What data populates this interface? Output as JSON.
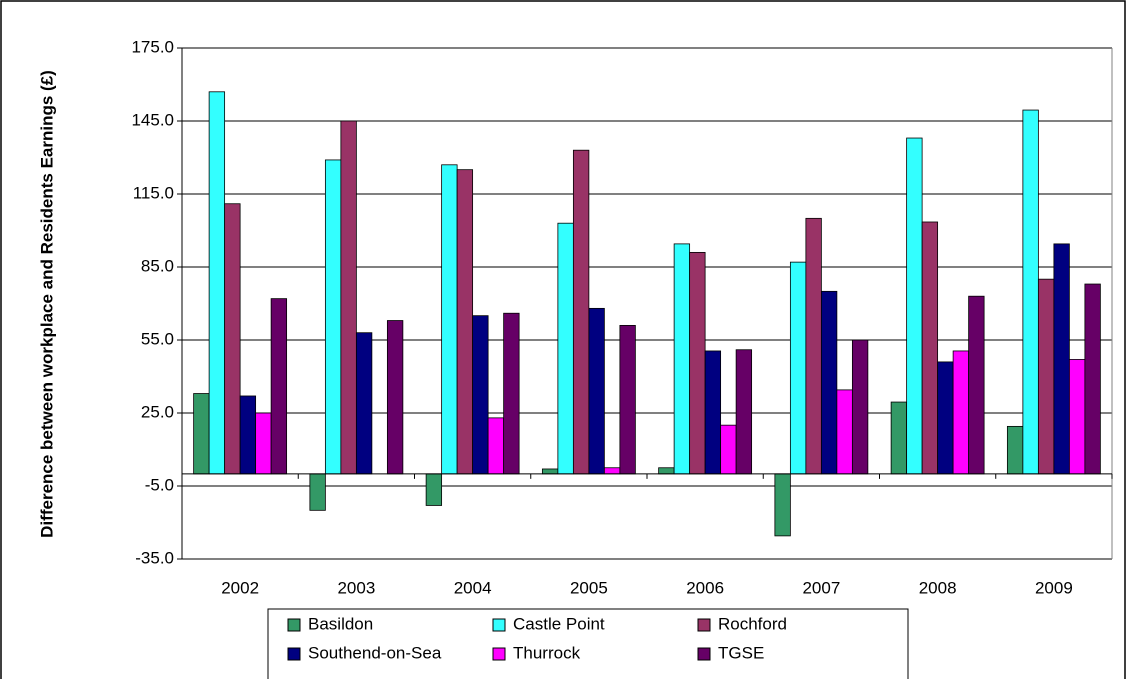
{
  "chart_data": {
    "type": "bar",
    "y_label": "Difference between workplace and Residents Earnings (£)",
    "categories": [
      "2002",
      "2003",
      "2004",
      "2005",
      "2006",
      "2007",
      "2008",
      "2009"
    ],
    "series": [
      {
        "name": "Basildon",
        "color": "#339966",
        "values": [
          33,
          -15,
          -13,
          2,
          2.5,
          -25.5,
          29.5,
          19.5
        ]
      },
      {
        "name": "Castle Point",
        "color": "#33ffff",
        "values": [
          157,
          129,
          127,
          103,
          94.5,
          87,
          138,
          149.5
        ]
      },
      {
        "name": "Rochford",
        "color": "#993366",
        "values": [
          111,
          145,
          125,
          133,
          91,
          105,
          103.5,
          80
        ]
      },
      {
        "name": "Southend-on-Sea",
        "color": "#000080",
        "values": [
          32,
          58,
          65,
          68,
          50.5,
          75,
          46,
          94.5
        ]
      },
      {
        "name": "Thurrock",
        "color": "#ff00ff",
        "values": [
          25,
          null,
          23,
          2.5,
          20,
          34.5,
          50.5,
          47
        ]
      },
      {
        "name": "TGSE",
        "color": "#660066",
        "values": [
          72,
          63,
          66,
          61,
          51,
          55,
          73,
          78
        ]
      }
    ],
    "ylim": [
      -35,
      175
    ],
    "yticks": [
      {
        "value": -35,
        "label": "-35.0"
      },
      {
        "value": -5,
        "label": "-5.0"
      },
      {
        "value": 25,
        "label": "25.0"
      },
      {
        "value": 55,
        "label": "55.0"
      },
      {
        "value": 85,
        "label": "85.0"
      },
      {
        "value": 115,
        "label": "115.0"
      },
      {
        "value": 145,
        "label": "145.0"
      },
      {
        "value": 175,
        "label": "175.0"
      }
    ],
    "grid": true,
    "legend": "bottom"
  }
}
